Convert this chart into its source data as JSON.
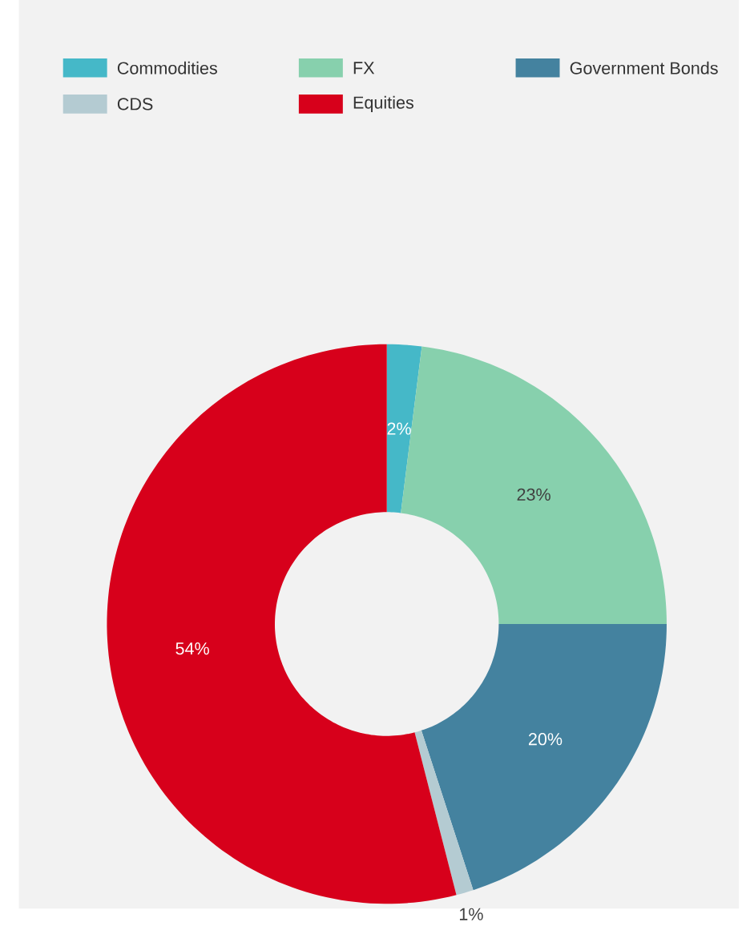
{
  "chart_data": {
    "type": "donut",
    "categories": [
      "Commodities",
      "FX",
      "Government Bonds",
      "CDS",
      "Equities"
    ],
    "values": [
      2,
      23,
      20,
      1,
      54
    ],
    "value_labels": [
      "2%",
      "23%",
      "20%",
      "1%",
      "54%"
    ],
    "colors": [
      "#45b8c8",
      "#87d0ad",
      "#44829f",
      "#b4cbd2",
      "#d7001b"
    ],
    "legend": "top"
  }
}
